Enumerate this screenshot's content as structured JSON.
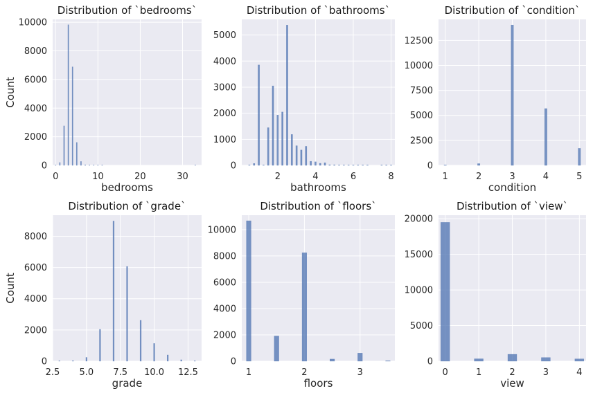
{
  "chart_data": [
    {
      "type": "bar",
      "title": "Distribution of `bedrooms`",
      "xlabel": "bedrooms",
      "ylabel": "Count",
      "xlim": [
        -0.7,
        34.5
      ],
      "ylim": [
        0,
        10200
      ],
      "xticks": [
        0,
        10,
        20,
        30
      ],
      "xtick_labels": [
        "0",
        "10",
        "20",
        "30"
      ],
      "yticks": [
        0,
        2000,
        4000,
        6000,
        8000,
        10000
      ],
      "ytick_labels": [
        "0",
        "2000",
        "4000",
        "6000",
        "8000",
        "10000"
      ],
      "bar_width": 0.2,
      "x": [
        0,
        1,
        2,
        3,
        4,
        5,
        6,
        7,
        8,
        9,
        10,
        11,
        33
      ],
      "values": [
        13,
        199,
        2760,
        9824,
        6882,
        1601,
        272,
        38,
        13,
        6,
        3,
        1,
        1
      ]
    },
    {
      "type": "bar",
      "title": "Distribution of `bathrooms`",
      "xlabel": "bathrooms",
      "ylabel": "",
      "xlim": [
        0.1,
        8.2
      ],
      "ylim": [
        0,
        5600
      ],
      "xticks": [
        2,
        4,
        6,
        8
      ],
      "xtick_labels": [
        "2",
        "4",
        "6",
        "8"
      ],
      "yticks": [
        0,
        1000,
        2000,
        3000,
        4000,
        5000
      ],
      "ytick_labels": [
        "0",
        "1000",
        "2000",
        "3000",
        "4000",
        "5000"
      ],
      "bar_width": 0.08,
      "x": [
        0.5,
        0.75,
        1.0,
        1.25,
        1.5,
        1.75,
        2.0,
        2.25,
        2.5,
        2.75,
        3.0,
        3.25,
        3.5,
        3.75,
        4.0,
        4.25,
        4.5,
        4.75,
        5.0,
        5.25,
        5.5,
        5.75,
        6.0,
        6.25,
        6.5,
        6.75,
        7.5,
        7.75,
        8.0
      ],
      "values": [
        4,
        72,
        3852,
        9,
        1446,
        3048,
        1930,
        2047,
        5380,
        1185,
        753,
        589,
        731,
        155,
        136,
        79,
        100,
        23,
        21,
        13,
        10,
        4,
        6,
        2,
        2,
        2,
        1,
        1,
        2
      ]
    },
    {
      "type": "bar",
      "title": "Distribution of `condition`",
      "xlabel": "condition",
      "ylabel": "",
      "xlim": [
        0.8,
        5.2
      ],
      "ylim": [
        0,
        14600
      ],
      "xticks": [
        1,
        2,
        3,
        4,
        5
      ],
      "xtick_labels": [
        "1",
        "2",
        "3",
        "4",
        "5"
      ],
      "yticks": [
        0,
        2500,
        5000,
        7500,
        10000,
        12500
      ],
      "ytick_labels": [
        "0",
        "2500",
        "5000",
        "7500",
        "10000",
        "12500"
      ],
      "bar_width": 0.07,
      "x": [
        1,
        2,
        3,
        4,
        5
      ],
      "values": [
        30,
        172,
        14031,
        5679,
        1701
      ]
    },
    {
      "type": "bar",
      "title": "Distribution of `grade`",
      "xlabel": "grade",
      "ylabel": "Count",
      "xlim": [
        2.5,
        13.5
      ],
      "ylim": [
        0,
        9350
      ],
      "xticks": [
        2.5,
        5.0,
        7.5,
        10.0,
        12.5
      ],
      "xtick_labels": [
        "2.5",
        "5.0",
        "7.5",
        "10.0",
        "12.5"
      ],
      "yticks": [
        0,
        2000,
        4000,
        6000,
        8000
      ],
      "ytick_labels": [
        "0",
        "2000",
        "4000",
        "6000",
        "8000"
      ],
      "bar_width": 0.09,
      "x": [
        3,
        4,
        5,
        6,
        7,
        8,
        9,
        10,
        11,
        12,
        13
      ],
      "values": [
        1,
        29,
        242,
        2038,
        8974,
        6065,
        2615,
        1134,
        399,
        89,
        13
      ]
    },
    {
      "type": "bar",
      "title": "Distribution of `floors`",
      "xlabel": "floors",
      "ylabel": "",
      "xlim": [
        0.875,
        3.625
      ],
      "ylim": [
        0,
        11100
      ],
      "xticks": [
        1,
        2,
        3
      ],
      "xtick_labels": [
        "1",
        "2",
        "3"
      ],
      "yticks": [
        0,
        2000,
        4000,
        6000,
        8000,
        10000
      ],
      "ytick_labels": [
        "0",
        "2000",
        "4000",
        "6000",
        "8000",
        "10000"
      ],
      "bar_width": 0.083,
      "x": [
        1.0,
        1.5,
        2.0,
        2.5,
        3.0,
        3.5
      ],
      "values": [
        10673,
        1910,
        8241,
        161,
        613,
        8
      ]
    },
    {
      "type": "bar",
      "title": "Distribution of `view`",
      "xlabel": "view",
      "ylabel": "",
      "xlim": [
        -0.2,
        4.2
      ],
      "ylim": [
        0,
        20500
      ],
      "xticks": [
        0,
        1,
        2,
        3,
        4
      ],
      "xtick_labels": [
        "0",
        "1",
        "2",
        "3",
        "4"
      ],
      "yticks": [
        0,
        5000,
        10000,
        15000,
        20000
      ],
      "ytick_labels": [
        "0",
        "5000",
        "10000",
        "15000",
        "20000"
      ],
      "bar_width": 0.267,
      "x": [
        0,
        1,
        2,
        3,
        4
      ],
      "values": [
        19489,
        332,
        963,
        510,
        319
      ]
    }
  ]
}
